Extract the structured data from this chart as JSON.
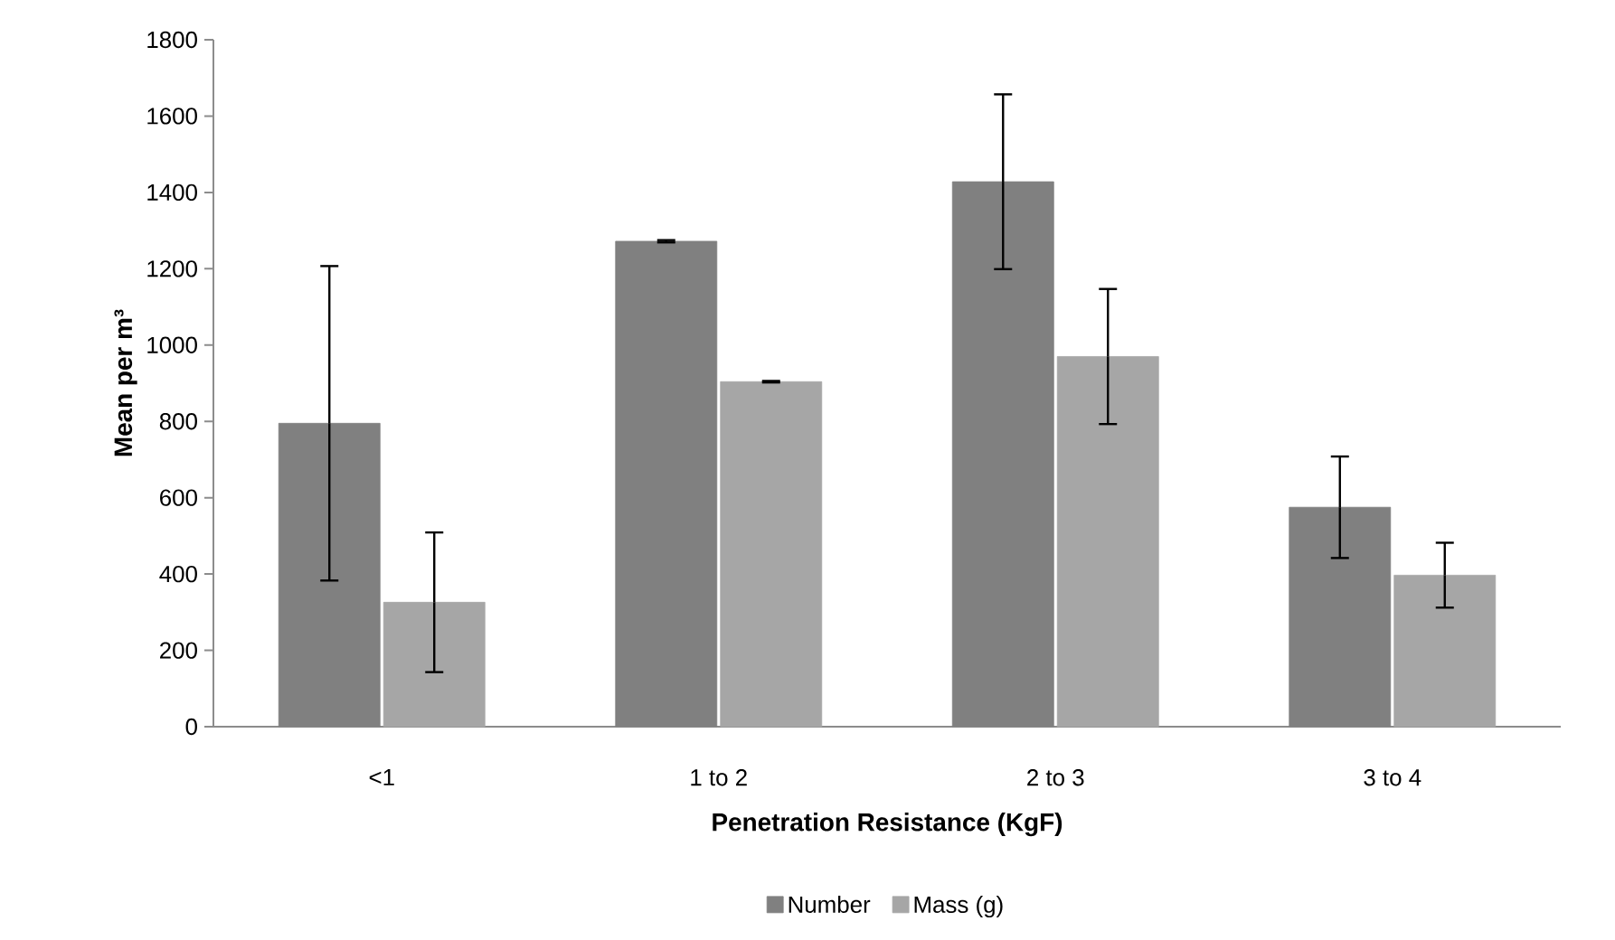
{
  "chart_data": {
    "type": "bar",
    "xlabel": "Penetration Resistance (KgF)",
    "ylabel": "Mean per m³",
    "categories": [
      "<1",
      "1 to 2",
      "2 to 3",
      "3 to 4"
    ],
    "series": [
      {
        "name": "Number",
        "color": "#808080",
        "values": [
          795,
          1272,
          1428,
          575
        ],
        "errors": [
          412,
          3,
          229,
          133
        ]
      },
      {
        "name": "Mass (g)",
        "color": "#a6a6a6",
        "values": [
          326,
          904,
          970,
          397
        ],
        "errors": [
          183,
          2,
          177,
          85
        ]
      }
    ],
    "ylim": [
      0,
      1800
    ],
    "yticks": [
      0,
      200,
      400,
      600,
      800,
      1000,
      1200,
      1400,
      1600,
      1800
    ],
    "legend": "bottom",
    "grid": false
  }
}
